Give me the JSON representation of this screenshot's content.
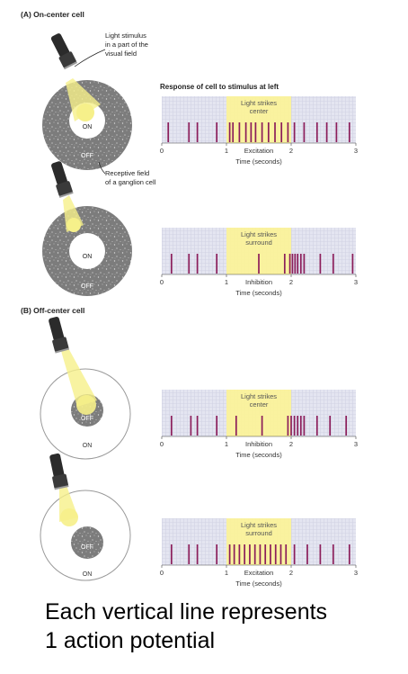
{
  "sections": {
    "a_title": "(A) On-center cell",
    "b_title": "(B) Off-center cell"
  },
  "annotations": {
    "light_stimulus": [
      "Light stimulus",
      "in a part of the",
      "visual field"
    ],
    "receptive_field": [
      "Receptive field",
      "of a ganglion cell"
    ]
  },
  "response_title": "Response of cell to stimulus at left",
  "axis_label": "Time (seconds)",
  "ticks": [
    "0",
    "1",
    "2",
    "3"
  ],
  "labels": {
    "on": "ON",
    "off": "OFF"
  },
  "colors": {
    "spike": "#8b1d5a",
    "highlight": "#fbf29a",
    "grid_bg": "#e4e5f1",
    "field_gray": "#7c7c7c",
    "beam": "#f6f08a"
  },
  "caption": [
    "Each vertical line represents",
    "1 action potential"
  ],
  "chart_data": [
    {
      "type": "raster",
      "panel": "A1",
      "label": [
        "Light strikes",
        "center"
      ],
      "result": "Excitation",
      "xlim": [
        0,
        3
      ],
      "stimulus": [
        1,
        2
      ],
      "spikes": [
        0.1,
        0.42,
        0.55,
        0.85,
        1.05,
        1.1,
        1.2,
        1.3,
        1.38,
        1.45,
        1.55,
        1.65,
        1.75,
        1.85,
        1.95,
        2.05,
        2.2,
        2.4,
        2.55,
        2.7,
        2.9
      ]
    },
    {
      "type": "raster",
      "panel": "A2",
      "label": [
        "Light strikes",
        "surround"
      ],
      "result": "Inhibition",
      "xlim": [
        0,
        3
      ],
      "stimulus": [
        1,
        2
      ],
      "spikes": [
        0.15,
        0.42,
        0.55,
        0.85,
        1.5,
        1.9,
        1.98,
        2.02,
        2.06,
        2.1,
        2.15,
        2.2,
        2.45,
        2.65,
        2.95
      ]
    },
    {
      "type": "raster",
      "panel": "B1",
      "label": [
        "Light strikes",
        "center"
      ],
      "result": "Inhibition",
      "xlim": [
        0,
        3
      ],
      "stimulus": [
        1,
        2
      ],
      "spikes": [
        0.15,
        0.45,
        0.55,
        0.85,
        1.15,
        1.55,
        1.95,
        2.0,
        2.05,
        2.1,
        2.15,
        2.2,
        2.4,
        2.6,
        2.85
      ]
    },
    {
      "type": "raster",
      "panel": "B2",
      "label": [
        "Light strikes",
        "surround"
      ],
      "result": "Excitation",
      "xlim": [
        0,
        3
      ],
      "stimulus": [
        1,
        2
      ],
      "spikes": [
        0.15,
        0.42,
        0.55,
        0.85,
        1.05,
        1.12,
        1.2,
        1.28,
        1.36,
        1.44,
        1.52,
        1.6,
        1.68,
        1.76,
        1.84,
        1.92,
        2.05,
        2.25,
        2.45,
        2.65,
        2.9
      ]
    }
  ]
}
